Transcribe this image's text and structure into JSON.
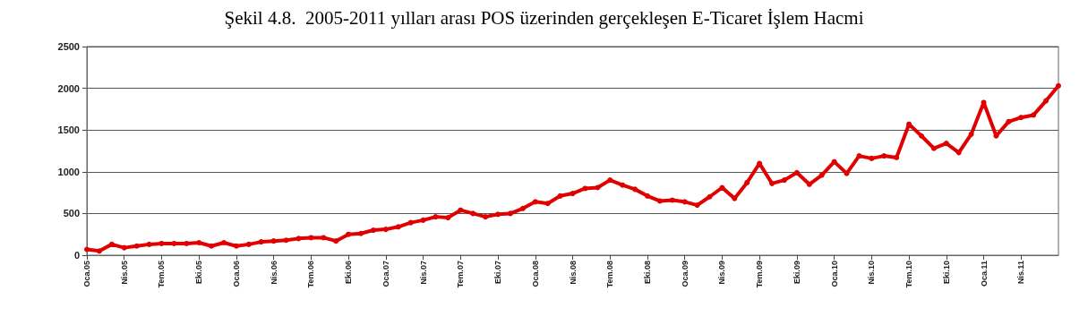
{
  "chart_data": {
    "type": "line",
    "title": "Şekil 4.8.  2005-2011 yılları arası POS üzerinden gerçekleşen E-Ticaret İşlem Hacmi",
    "categories": [
      "Oca.05",
      null,
      null,
      "Nis.05",
      null,
      null,
      "Tem.05",
      null,
      null,
      "Eki.05",
      null,
      null,
      "Oca.06",
      null,
      null,
      "Nis.06",
      null,
      null,
      "Tem.06",
      null,
      null,
      "Eki.06",
      null,
      null,
      "Oca.07",
      null,
      null,
      "Nis.07",
      null,
      null,
      "Tem.07",
      null,
      null,
      "Eki.07",
      null,
      null,
      "Oca.08",
      null,
      null,
      "Nis.08",
      null,
      null,
      "Tem.08",
      null,
      null,
      "Eki.08",
      null,
      null,
      "Oca.09",
      null,
      null,
      "Nis.09",
      null,
      null,
      "Tem.09",
      null,
      null,
      "Eki.09",
      null,
      null,
      "Oca.10",
      null,
      null,
      "Nis.10",
      null,
      null,
      "Tem.10",
      null,
      null,
      "Eki.10",
      null,
      null,
      "Oca.11",
      null,
      null,
      "Nis.11",
      null,
      null,
      null
    ],
    "series": [
      {
        "color": "#e00000",
        "values": [
          70,
          50,
          130,
          90,
          110,
          130,
          140,
          140,
          140,
          150,
          110,
          150,
          110,
          130,
          160,
          170,
          180,
          200,
          210,
          210,
          170,
          250,
          260,
          300,
          310,
          340,
          390,
          420,
          460,
          450,
          540,
          500,
          460,
          490,
          500,
          560,
          640,
          620,
          710,
          740,
          800,
          810,
          900,
          840,
          790,
          710,
          650,
          660,
          640,
          600,
          700,
          810,
          680,
          870,
          1100,
          860,
          900,
          990,
          850,
          960,
          1120,
          980,
          1190,
          1160,
          1190,
          1170,
          1570,
          1430,
          1280,
          1340,
          1230,
          1450,
          1830,
          1430,
          1600,
          1650,
          1680,
          1850,
          2030
        ]
      }
    ],
    "ylim": [
      0,
      2500
    ],
    "yticks": [
      0,
      500,
      1000,
      1500,
      2000,
      2500
    ],
    "grid": "y",
    "marker": "circle",
    "line_style": "solid"
  }
}
